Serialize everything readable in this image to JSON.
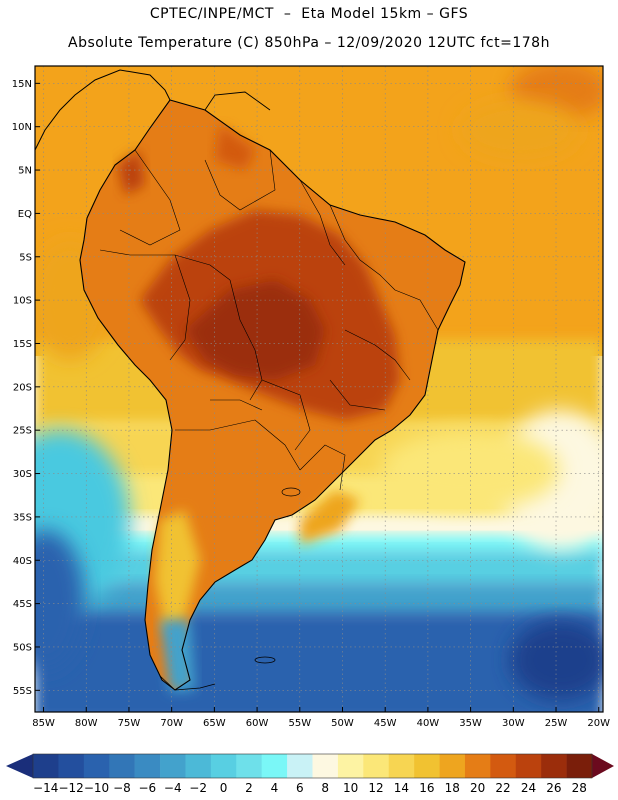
{
  "header": {
    "line1": "CPTEC/INPE/MCT  –  Eta Model 15km – GFS",
    "line2": "Absolute Temperature (C) 850hPa – 12/09/2020 12UTC fct=178h"
  },
  "map": {
    "lat_labels": [
      "15N",
      "10N",
      "5N",
      "EQ",
      "5S",
      "10S",
      "15S",
      "20S",
      "25S",
      "30S",
      "35S",
      "40S",
      "45S",
      "50S",
      "55S"
    ],
    "lat_values": [
      15,
      10,
      5,
      0,
      -5,
      -10,
      -15,
      -20,
      -25,
      -30,
      -35,
      -40,
      -45,
      -50,
      -55
    ],
    "lon_labels": [
      "85W",
      "80W",
      "75W",
      "70W",
      "65W",
      "60W",
      "55W",
      "50W",
      "45W",
      "40W",
      "35W",
      "30W",
      "25W",
      "20W"
    ],
    "lon_values": [
      -85,
      -80,
      -75,
      -70,
      -65,
      -60,
      -55,
      -50,
      -45,
      -40,
      -35,
      -30,
      -25,
      -20
    ],
    "lat_range": [
      -57.5,
      17
    ],
    "lon_range": [
      -86,
      -19.5
    ],
    "colors": {
      "ocean_north": "#f3a31b",
      "ocean_south_warm": "#fbd84f",
      "ocean_south_cool": "#49c9e0",
      "ocean_south_cold": "#2f79b8",
      "land_hot": "#b2470d",
      "land_warm": "#db6b12",
      "andes": "#f0a21a",
      "coast_line": "#000000",
      "grid": "#8a8a8a"
    }
  },
  "colorbar": {
    "labels": [
      "-14",
      "-12",
      "-10",
      "-8",
      "-6",
      "-4",
      "-2",
      "0",
      "2",
      "4",
      "6",
      "8",
      "10",
      "12",
      "14",
      "16",
      "18",
      "20",
      "22",
      "24",
      "26",
      "28"
    ],
    "colors": [
      "#1e3f8c",
      "#234f9e",
      "#2a62ae",
      "#3276b7",
      "#3a8bc2",
      "#43a2cc",
      "#4cb9d7",
      "#58cfe2",
      "#6ee0ea",
      "#7af7f7",
      "#c9f2f6",
      "#fdf8e1",
      "#fdf3a3",
      "#fbe778",
      "#f7d552",
      "#f1c231",
      "#eea51f",
      "#e57d16",
      "#d35a10",
      "#bb420d",
      "#9b2d0b",
      "#7a1e0a"
    ],
    "left_arrow_color": "#1a2e7a",
    "right_arrow_color": "#6b0a1e"
  }
}
